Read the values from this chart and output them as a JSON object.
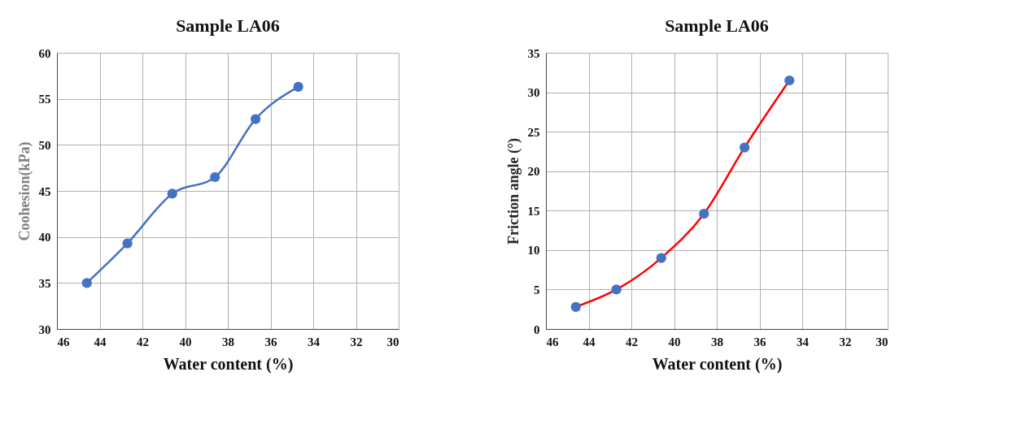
{
  "chart_data": [
    {
      "type": "line",
      "title": "Sample LA06",
      "xlabel": "Water content (%)",
      "ylabel": "Coohesion(kPa)",
      "x": [
        44.6,
        42.7,
        40.6,
        38.6,
        36.7,
        34.7
      ],
      "series": [
        {
          "color": "#4472c4",
          "values": [
            35.0,
            39.3,
            44.7,
            46.5,
            52.8,
            56.3
          ]
        }
      ],
      "xlim": [
        46,
        30
      ],
      "xticks": [
        46,
        44,
        42,
        40,
        38,
        36,
        34,
        32,
        30
      ],
      "ylim": [
        30,
        60
      ],
      "yticks": [
        30,
        35,
        40,
        45,
        50,
        55,
        60
      ],
      "grid": true,
      "marker": "circle",
      "line_style": "solid"
    },
    {
      "type": "line",
      "title": "Sample LA06",
      "xlabel": "Water content (%)",
      "ylabel": "Friction angle (°)",
      "x": [
        44.6,
        42.7,
        40.6,
        38.6,
        36.7,
        34.6
      ],
      "series": [
        {
          "color": "#ff0000",
          "colors": [
            "#4472c4",
            "#4472c4",
            "#4472c4",
            "#4472c4",
            "#4472c4",
            "#4472c4"
          ],
          "values": [
            2.8,
            5.0,
            9.0,
            14.6,
            23.0,
            31.5
          ]
        }
      ],
      "xlim": [
        46,
        30
      ],
      "xticks": [
        46,
        44,
        42,
        40,
        38,
        36,
        34,
        32,
        30
      ],
      "ylim": [
        0,
        35
      ],
      "yticks": [
        0,
        5,
        10,
        15,
        20,
        25,
        30,
        35
      ],
      "grid": true,
      "marker": "circle",
      "line_style": "solid"
    }
  ]
}
